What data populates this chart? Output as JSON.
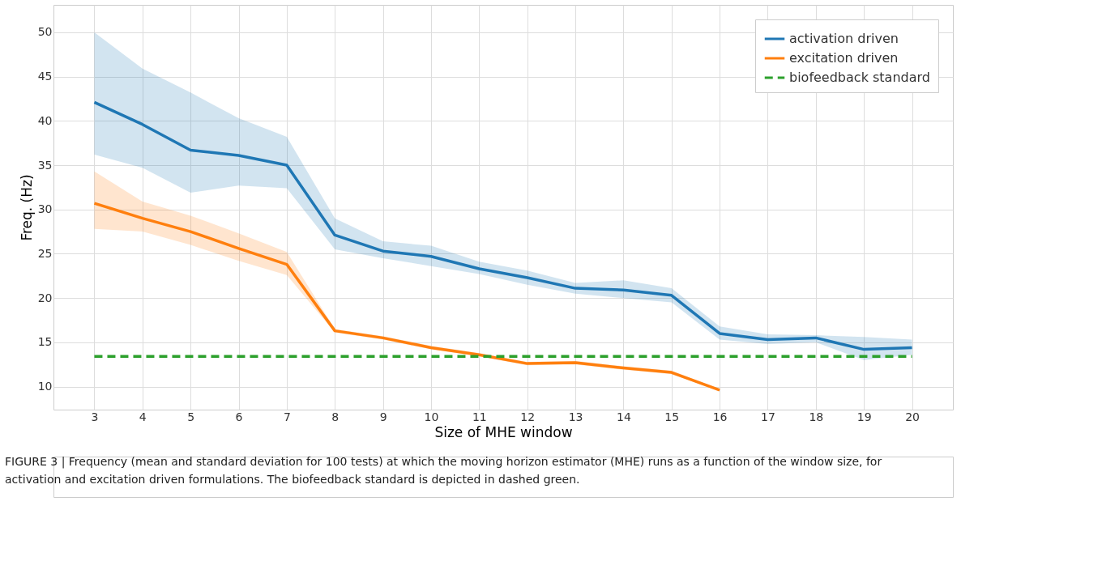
{
  "chart_data": {
    "type": "line",
    "xlabel": "Size of MHE window",
    "ylabel": "Freq. (Hz)",
    "x": [
      3,
      4,
      5,
      6,
      7,
      8,
      9,
      10,
      11,
      12,
      13,
      14,
      15,
      16,
      17,
      18,
      19,
      20
    ],
    "xlim": [
      2.15,
      20.85
    ],
    "xticks": [
      3,
      4,
      5,
      6,
      7,
      8,
      9,
      10,
      11,
      12,
      13,
      14,
      15,
      16,
      17,
      18,
      19,
      20
    ],
    "ylim": [
      7.4,
      53.1
    ],
    "yticks": [
      10,
      15,
      20,
      25,
      30,
      35,
      40,
      45,
      50
    ],
    "grid": true,
    "legend": "top right",
    "marker": "none",
    "series": [
      {
        "name": "activation driven",
        "color": "#1f77b4",
        "line_style": "solid",
        "values": [
          42.1,
          39.6,
          36.7,
          36.1,
          35.0,
          27.1,
          25.3,
          24.7,
          23.3,
          22.3,
          21.1,
          20.9,
          20.3,
          16.0,
          15.3,
          15.5,
          14.2,
          14.4
        ],
        "upper": [
          50.0,
          45.9,
          43.2,
          40.3,
          38.2,
          29.0,
          26.4,
          25.9,
          24.1,
          23.1,
          21.7,
          22.0,
          21.1,
          16.8,
          15.9,
          15.8,
          15.6,
          15.3
        ],
        "lower": [
          36.2,
          34.7,
          31.9,
          32.7,
          32.4,
          25.5,
          24.5,
          23.6,
          22.7,
          21.5,
          20.5,
          20.0,
          19.5,
          15.3,
          14.8,
          15.0,
          13.0,
          13.6
        ]
      },
      {
        "name": "excitation driven",
        "color": "#ff7f0e",
        "line_style": "solid",
        "x": [
          3,
          4,
          5,
          6,
          7,
          8,
          9,
          10,
          11,
          12,
          13,
          14,
          15,
          16
        ],
        "values": [
          30.7,
          29.0,
          27.5,
          25.6,
          23.8,
          16.3,
          15.5,
          14.4,
          13.6,
          12.6,
          12.7,
          12.1,
          11.6,
          9.6
        ],
        "upper": [
          34.3,
          30.9,
          29.3,
          27.3,
          25.2,
          16.5,
          15.7,
          14.6,
          13.8,
          12.8,
          12.9,
          12.3,
          11.8,
          9.7
        ],
        "lower": [
          27.8,
          27.5,
          26.0,
          24.2,
          22.6,
          16.1,
          15.3,
          14.2,
          13.4,
          12.4,
          12.5,
          11.9,
          11.4,
          9.5
        ]
      },
      {
        "name": "biofeedback standard",
        "color": "#2ca02c",
        "line_style": "dashed",
        "values": [
          13.4,
          13.4,
          13.4,
          13.4,
          13.4,
          13.4,
          13.4,
          13.4,
          13.4,
          13.4,
          13.4,
          13.4,
          13.4,
          13.4,
          13.4,
          13.4,
          13.4,
          13.4
        ]
      }
    ],
    "annotations": [
      "FIGURE 3 | Frequency (mean and standard deviation for 100 tests) at which the moving horizon estimator (MHE) runs as a function of the window size, for activation and excitation driven formulations. The biofeedback standard is depicted in dashed green."
    ]
  }
}
